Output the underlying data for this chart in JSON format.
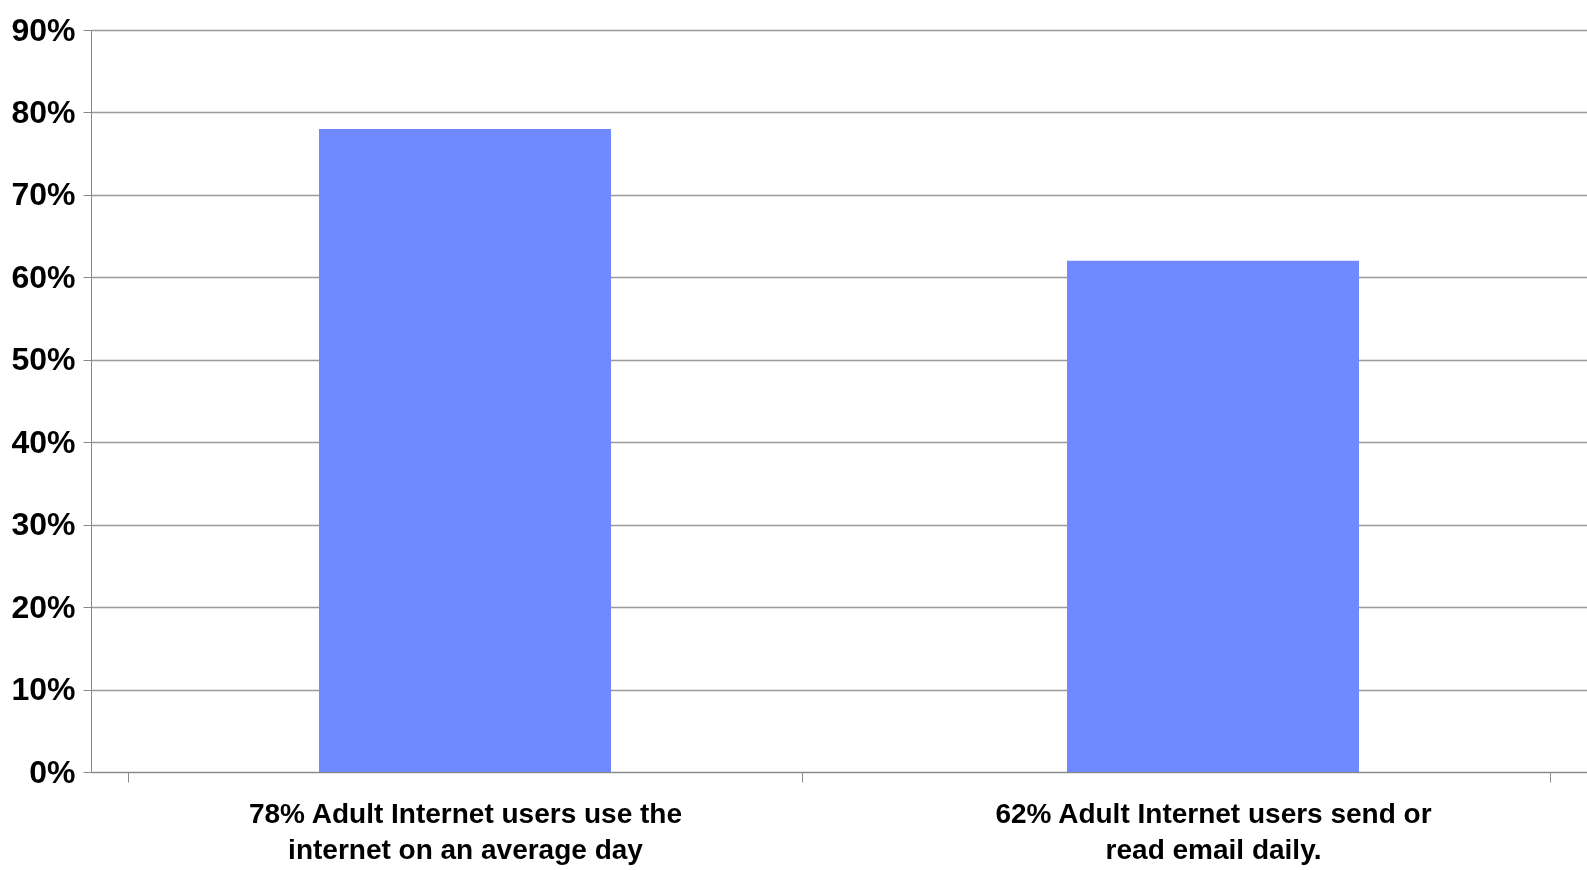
{
  "chart_data": {
    "type": "bar",
    "categories": [
      "78% Adult Internet users use the internet on an average day",
      "62% Adult Internet users send or read email daily."
    ],
    "values": [
      78,
      62
    ],
    "color": "#7189ff",
    "ylim": [
      0,
      90
    ],
    "yticks": [
      {
        "value": 0,
        "label": "0%"
      },
      {
        "value": 10,
        "label": "10%"
      },
      {
        "value": 20,
        "label": "20%"
      },
      {
        "value": 30,
        "label": "30%"
      },
      {
        "value": 40,
        "label": "40%"
      },
      {
        "value": 50,
        "label": "50%"
      },
      {
        "value": 60,
        "label": "60%"
      },
      {
        "value": 70,
        "label": "70%"
      },
      {
        "value": 80,
        "label": "80%"
      },
      {
        "value": 90,
        "label": "90%"
      }
    ],
    "grid": "y"
  }
}
